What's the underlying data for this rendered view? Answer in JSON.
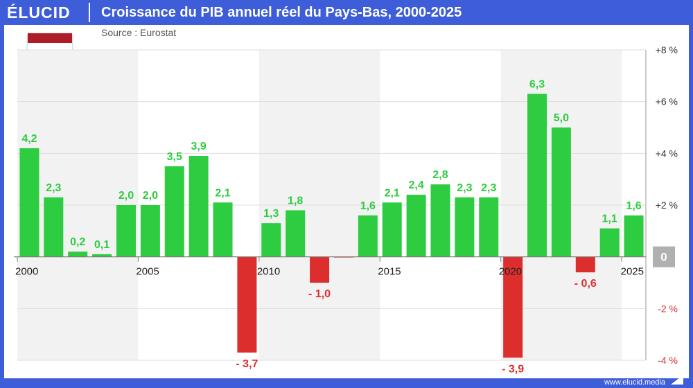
{
  "brand": {
    "logo_text": "ÉLUCID",
    "url": "www.elucid.media",
    "accent_color": "#3d5dd9"
  },
  "header": {
    "title": "Croissance du PIB annuel réel du Pays-Bas, 2000-2025",
    "source": "Source : Eurostat"
  },
  "flag": {
    "icon": "netherlands-flag-icon",
    "colors": [
      "#ae1c28",
      "#ffffff",
      "#21468b"
    ]
  },
  "chart_data": {
    "type": "bar",
    "title": "Croissance du PIB annuel réel du Pays-Bas, 2000-2025",
    "xlabel": "",
    "ylabel": "",
    "categories": [
      "2000",
      "2001",
      "2002",
      "2003",
      "2004",
      "2005",
      "2006",
      "2007",
      "2008",
      "2009",
      "2010",
      "2011",
      "2012",
      "2013",
      "2014",
      "2015",
      "2016",
      "2017",
      "2018",
      "2019",
      "2020",
      "2021",
      "2022",
      "2023",
      "2024",
      "2025"
    ],
    "values": [
      4.2,
      2.3,
      0.2,
      0.1,
      2.0,
      2.0,
      3.5,
      3.9,
      2.1,
      -3.7,
      1.3,
      1.8,
      -1.0,
      -0.02,
      1.6,
      2.1,
      2.4,
      2.8,
      2.3,
      2.3,
      -3.9,
      6.3,
      5.0,
      -0.6,
      1.1,
      1.6
    ],
    "data_labels": [
      "4,2",
      "2,3",
      "0,2",
      "0,1",
      "2,0",
      "2,0",
      "3,5",
      "3,9",
      "2,1",
      "- 3,7",
      "1,3",
      "1,8",
      "- 1,0",
      "",
      "1,6",
      "2,1",
      "2,4",
      "2,8",
      "2,3",
      "2,3",
      "- 3,9",
      "6,3",
      "5,0",
      "- 0,6",
      "1,1",
      "1,6"
    ],
    "x_tick_labels": [
      "2000",
      "2005",
      "2010",
      "2015",
      "2020",
      "2025"
    ],
    "y_ticks": [
      {
        "value": 8,
        "label": "+8 %"
      },
      {
        "value": 6,
        "label": "+6 %"
      },
      {
        "value": 4,
        "label": "+4 %"
      },
      {
        "value": 2,
        "label": "+2 %"
      },
      {
        "value": -2,
        "label": "-2 %"
      },
      {
        "value": -4,
        "label": "-4 %"
      }
    ],
    "zero_label": "0",
    "ylim": [
      -4,
      8
    ],
    "grid": true,
    "colors": {
      "positive": "#2ecc40",
      "negative": "#dd2e2e",
      "band": "#f2f2f2",
      "zero_badge": "#b0b0b0"
    }
  }
}
